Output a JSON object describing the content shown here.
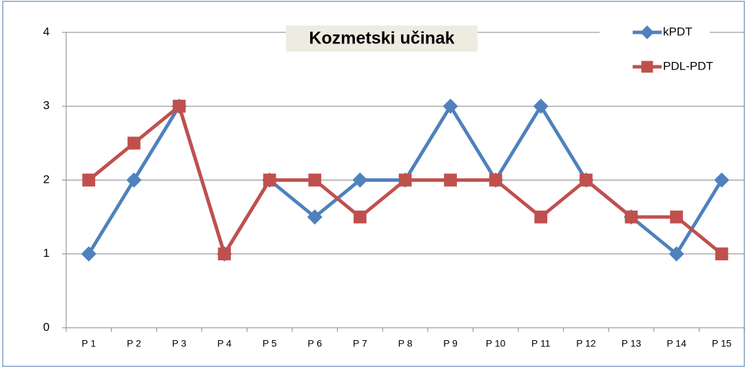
{
  "chart_data": {
    "type": "line",
    "title": "Kozmetski učinak",
    "categories": [
      "P 1",
      "P 2",
      "P 3",
      "P 4",
      "P 5",
      "P 6",
      "P 7",
      "P 8",
      "P 9",
      "P 10",
      "P 11",
      "P 12",
      "P 13",
      "P 14",
      "P 15"
    ],
    "series": [
      {
        "name": "kPDT",
        "color": "#4f81bd",
        "marker": "diamond",
        "values": [
          1,
          2,
          3,
          1,
          2,
          1.5,
          2,
          2,
          3,
          2,
          3,
          2,
          1.5,
          1,
          2
        ]
      },
      {
        "name": "PDL-PDT",
        "color": "#c0504d",
        "marker": "square",
        "values": [
          2,
          2.5,
          3,
          1,
          2,
          2,
          1.5,
          2,
          2,
          2,
          1.5,
          2,
          1.5,
          1.5,
          1
        ]
      }
    ],
    "ylim": [
      0,
      4
    ],
    "yticks": [
      0,
      1,
      2,
      3,
      4
    ],
    "grid": true,
    "legend": "top-right"
  }
}
